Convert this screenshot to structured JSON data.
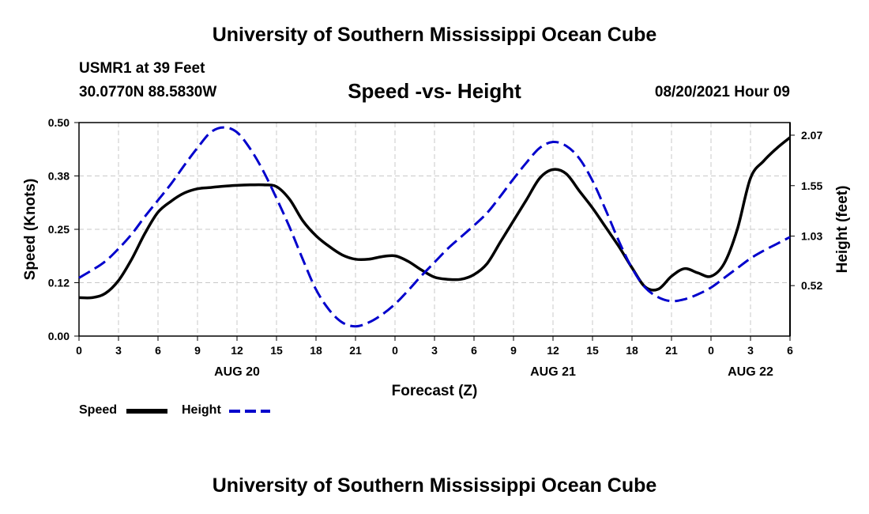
{
  "header": {
    "title": "University of Southern Mississippi Ocean Cube",
    "station": "USMR1 at 39 Feet",
    "coords": "30.0770N  88.5830W",
    "subtitle": "Speed -vs- Height",
    "datetime": "08/20/2021 Hour 09"
  },
  "footer": {
    "title": "University of Southern Mississippi Ocean Cube"
  },
  "legend": {
    "speed_label": "Speed",
    "height_label": "Height"
  },
  "chart_data": {
    "type": "line",
    "xlabel": "Forecast (Z)",
    "ylabel_left": "Speed (Knots)",
    "ylabel_right": "Height (feet)",
    "x_range_hours": [
      0,
      54
    ],
    "x_ticks": [
      {
        "h": 0,
        "label": "0"
      },
      {
        "h": 3,
        "label": "3"
      },
      {
        "h": 6,
        "label": "6"
      },
      {
        "h": 9,
        "label": "9"
      },
      {
        "h": 12,
        "label": "12"
      },
      {
        "h": 15,
        "label": "15"
      },
      {
        "h": 18,
        "label": "18"
      },
      {
        "h": 21,
        "label": "21"
      },
      {
        "h": 24,
        "label": "0"
      },
      {
        "h": 27,
        "label": "3"
      },
      {
        "h": 30,
        "label": "6"
      },
      {
        "h": 33,
        "label": "9"
      },
      {
        "h": 36,
        "label": "12"
      },
      {
        "h": 39,
        "label": "15"
      },
      {
        "h": 42,
        "label": "18"
      },
      {
        "h": 45,
        "label": "21"
      },
      {
        "h": 48,
        "label": "0"
      },
      {
        "h": 51,
        "label": "3"
      },
      {
        "h": 54,
        "label": "6"
      }
    ],
    "date_labels": [
      {
        "h": 12,
        "label": "AUG 20"
      },
      {
        "h": 36,
        "label": "AUG 21"
      },
      {
        "h": 51,
        "label": "AUG 22"
      }
    ],
    "y_left": {
      "range": [
        0,
        0.5
      ],
      "ticks": [
        {
          "v": 0.0,
          "label": "0.00"
        },
        {
          "v": 0.125,
          "label": "0.12"
        },
        {
          "v": 0.25,
          "label": "0.25"
        },
        {
          "v": 0.375,
          "label": "0.38"
        },
        {
          "v": 0.5,
          "label": "0.50"
        }
      ]
    },
    "y_right": {
      "range": [
        0.0,
        2.2
      ],
      "ticks": [
        {
          "v": 0.52,
          "label": "0.52"
        },
        {
          "v": 1.03,
          "label": "1.03"
        },
        {
          "v": 1.55,
          "label": "1.55"
        },
        {
          "v": 2.07,
          "label": "2.07"
        }
      ]
    },
    "series": [
      {
        "name": "Speed",
        "axis": "left",
        "color": "#000000",
        "dash": "solid",
        "x": [
          0,
          1,
          2,
          3,
          4,
          5,
          6,
          7,
          8,
          9,
          10,
          11,
          12,
          13,
          14,
          15,
          16,
          17,
          18,
          19,
          20,
          21,
          22,
          23,
          24,
          25,
          26,
          27,
          28,
          29,
          30,
          31,
          32,
          33,
          34,
          35,
          36,
          37,
          38,
          39,
          40,
          41,
          42,
          43,
          44,
          45,
          46,
          47,
          48,
          49,
          50,
          51,
          52,
          53,
          54
        ],
        "values": [
          0.09,
          0.09,
          0.1,
          0.13,
          0.18,
          0.24,
          0.29,
          0.316,
          0.335,
          0.345,
          0.348,
          0.351,
          0.353,
          0.354,
          0.354,
          0.35,
          0.32,
          0.27,
          0.235,
          0.21,
          0.19,
          0.18,
          0.18,
          0.186,
          0.188,
          0.175,
          0.155,
          0.138,
          0.133,
          0.133,
          0.144,
          0.17,
          0.22,
          0.27,
          0.32,
          0.37,
          0.39,
          0.38,
          0.34,
          0.3,
          0.255,
          0.21,
          0.16,
          0.115,
          0.11,
          0.14,
          0.158,
          0.148,
          0.14,
          0.17,
          0.25,
          0.37,
          0.41,
          0.44,
          0.465
        ]
      },
      {
        "name": "Height",
        "axis": "right",
        "color": "#0000CC",
        "dash": "dashed",
        "x": [
          0,
          1,
          2,
          3,
          4,
          5,
          6,
          7,
          8,
          9,
          10,
          11,
          12,
          13,
          14,
          15,
          16,
          17,
          18,
          19,
          20,
          21,
          22,
          23,
          24,
          25,
          26,
          27,
          28,
          29,
          30,
          31,
          32,
          33,
          34,
          35,
          36,
          37,
          38,
          39,
          40,
          41,
          42,
          43,
          44,
          45,
          46,
          47,
          48,
          49,
          50,
          51,
          52,
          53,
          54
        ],
        "values": [
          0.6,
          0.68,
          0.77,
          0.9,
          1.05,
          1.23,
          1.4,
          1.57,
          1.76,
          1.94,
          2.1,
          2.15,
          2.1,
          1.93,
          1.7,
          1.42,
          1.12,
          0.79,
          0.48,
          0.27,
          0.14,
          0.1,
          0.14,
          0.22,
          0.33,
          0.47,
          0.62,
          0.76,
          0.9,
          1.02,
          1.14,
          1.27,
          1.44,
          1.62,
          1.79,
          1.94,
          2.0,
          1.96,
          1.83,
          1.6,
          1.3,
          0.98,
          0.7,
          0.5,
          0.4,
          0.36,
          0.38,
          0.43,
          0.5,
          0.6,
          0.7,
          0.8,
          0.88,
          0.95,
          1.02
        ]
      }
    ]
  }
}
